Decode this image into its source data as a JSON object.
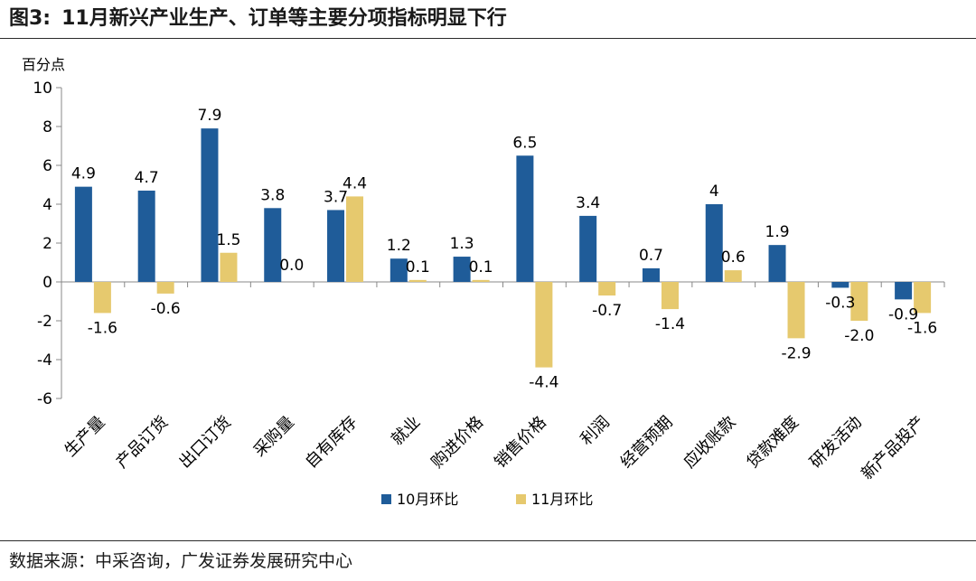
{
  "header": {
    "figure_no": "图3:",
    "title": "11月新兴产业生产、订单等主要分项指标明显下行"
  },
  "footer": {
    "source": "数据来源：中采咨询，广发证券发展研究中心"
  },
  "colors": {
    "oct": "#1f5c99",
    "nov": "#e6c96e",
    "axis": "#888888",
    "rule": "#2b2b2b"
  },
  "chart_data": {
    "type": "bar",
    "title": "",
    "ylabel": "百分点",
    "xlabel": "",
    "ylim": [
      -6,
      10
    ],
    "yticks": [
      10,
      8,
      6,
      4,
      2,
      0,
      -2,
      -4,
      -6
    ],
    "categories": [
      "生产量",
      "产品订货",
      "出口订货",
      "采购量",
      "自有库存",
      "就业",
      "购进价格",
      "销售价格",
      "利润",
      "经营预期",
      "应收账款",
      "贷款难度",
      "研发活动",
      "新产品投产"
    ],
    "series": [
      {
        "name": "10月环比",
        "values": [
          4.9,
          4.7,
          7.9,
          3.8,
          3.7,
          1.2,
          1.3,
          6.5,
          3.4,
          0.7,
          4,
          1.9,
          -0.3,
          -0.9
        ],
        "labels": [
          "4.9",
          "4.7",
          "7.9",
          "3.8",
          "3.7",
          "1.2",
          "1.3",
          "6.5",
          "3.4",
          "0.7",
          "4",
          "1.9",
          "-0.3",
          "-0.9"
        ]
      },
      {
        "name": "11月环比",
        "values": [
          -1.6,
          -0.6,
          1.5,
          0.0,
          4.4,
          0.1,
          0.1,
          -4.4,
          -0.7,
          -1.4,
          0.6,
          -2.9,
          -2.0,
          -1.6
        ],
        "labels": [
          "-1.6",
          "-0.6",
          "1.5",
          "0.0",
          "4.4",
          "0.1",
          "0.1",
          "-4.4",
          "-0.7",
          "-1.4",
          "0.6",
          "-2.9",
          "-2.0",
          "-1.6"
        ]
      }
    ],
    "legend_position": "bottom-center",
    "grid": false
  }
}
